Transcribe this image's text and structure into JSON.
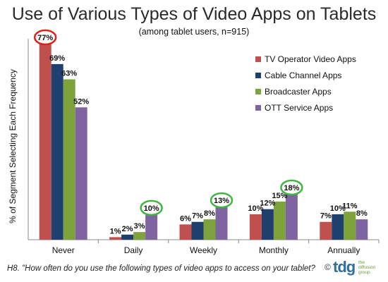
{
  "title": "Use of Various Types of Video Apps on Tablets",
  "subtitle": "(among tablet users, n=915)",
  "footnote": "H8. \"How often do you use the following types of video apps to access on your tablet?",
  "copyright": "©",
  "logo": {
    "name": "tdg",
    "tagline": "the diffusion group"
  },
  "colors": {
    "series": [
      "#c0504d",
      "#1f3f6e",
      "#7fa33c",
      "#8064a2"
    ],
    "highlight_red": "#e0201b",
    "highlight_green": "#3fb53f"
  },
  "chart_data": {
    "type": "bar",
    "ylabel": "% of Segment Selecting Each Frequency",
    "categories": [
      "Never",
      "Daily",
      "Weekly",
      "Monthly",
      "Annually"
    ],
    "ylim": [
      0,
      80
    ],
    "grid": false,
    "legend_position": "right",
    "series": [
      {
        "name": "TV Operator Video Apps",
        "values": [
          77,
          1,
          6,
          10,
          7
        ]
      },
      {
        "name": "Cable Channel Apps",
        "values": [
          69,
          2,
          7,
          12,
          10
        ]
      },
      {
        "name": "Broadcaster Apps",
        "values": [
          63,
          3,
          8,
          15,
          11
        ]
      },
      {
        "name": "OTT Service Apps",
        "values": [
          52,
          10,
          13,
          18,
          8
        ]
      }
    ],
    "data_labels": [
      [
        "77%",
        "69%",
        "63%",
        "52%"
      ],
      [
        "1%",
        "2%",
        "3%",
        "10%"
      ],
      [
        "6%",
        "7%",
        "8%",
        "13%"
      ],
      [
        "10%",
        "12%",
        "15%",
        "18%"
      ],
      [
        "7%",
        "10%",
        "11%",
        "8%"
      ]
    ],
    "highlighted": [
      {
        "category": "Never",
        "series": "TV Operator Video Apps",
        "color": "red"
      },
      {
        "category": "Daily",
        "series": "OTT Service Apps",
        "color": "green"
      },
      {
        "category": "Weekly",
        "series": "OTT Service Apps",
        "color": "green"
      },
      {
        "category": "Monthly",
        "series": "OTT Service Apps",
        "color": "green"
      }
    ]
  }
}
